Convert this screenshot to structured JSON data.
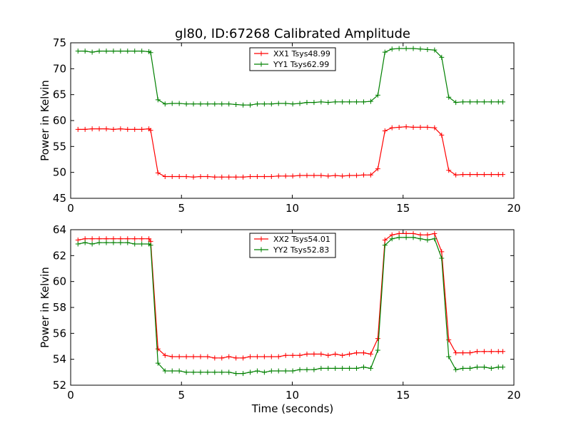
{
  "title": "gl80, ID:67268 Calibrated Amplitude",
  "xlabel": "Time (seconds)",
  "chart_data": [
    {
      "type": "line",
      "ylabel": "Power in Kelvin",
      "xlim": [
        0,
        20
      ],
      "ylim": [
        45,
        75
      ],
      "xticks": [
        0,
        5,
        10,
        15,
        20
      ],
      "yticks": [
        45,
        50,
        55,
        60,
        65,
        70,
        75
      ],
      "legend_loc": "top-center",
      "x": [
        0.33,
        0.65,
        0.97,
        1.29,
        1.61,
        1.93,
        2.25,
        2.57,
        2.89,
        3.21,
        3.53,
        3.61,
        3.94,
        4.26,
        4.58,
        4.9,
        5.22,
        5.54,
        5.86,
        6.18,
        6.5,
        6.82,
        7.14,
        7.46,
        7.78,
        8.1,
        8.42,
        8.74,
        9.06,
        9.38,
        9.7,
        10.02,
        10.34,
        10.66,
        10.98,
        11.3,
        11.62,
        11.94,
        12.26,
        12.58,
        12.9,
        13.22,
        13.54,
        13.86,
        14.18,
        14.5,
        14.82,
        15.14,
        15.46,
        15.78,
        16.1,
        16.42,
        16.74,
        17.06,
        17.38,
        17.7,
        18.02,
        18.34,
        18.66,
        18.98,
        19.3,
        19.5
      ],
      "series": [
        {
          "name": "XX1 Tsys48.99",
          "color": "#ff0000",
          "values": [
            58.3,
            58.3,
            58.4,
            58.4,
            58.4,
            58.3,
            58.4,
            58.3,
            58.3,
            58.3,
            58.4,
            58.1,
            49.9,
            49.2,
            49.2,
            49.2,
            49.2,
            49.1,
            49.2,
            49.2,
            49.1,
            49.1,
            49.1,
            49.1,
            49.1,
            49.2,
            49.2,
            49.2,
            49.2,
            49.3,
            49.3,
            49.3,
            49.4,
            49.4,
            49.4,
            49.4,
            49.3,
            49.4,
            49.3,
            49.4,
            49.4,
            49.5,
            49.5,
            50.7,
            58.0,
            58.6,
            58.7,
            58.8,
            58.7,
            58.7,
            58.7,
            58.6,
            57.2,
            50.4,
            49.5,
            49.6,
            49.6,
            49.6,
            49.6,
            49.6,
            49.6,
            49.6
          ]
        },
        {
          "name": "YY1 Tsys62.99",
          "color": "#008000",
          "values": [
            73.4,
            73.4,
            73.2,
            73.4,
            73.4,
            73.4,
            73.4,
            73.4,
            73.4,
            73.4,
            73.3,
            73.1,
            64.0,
            63.2,
            63.3,
            63.3,
            63.2,
            63.2,
            63.2,
            63.2,
            63.2,
            63.2,
            63.2,
            63.1,
            63.0,
            63.0,
            63.2,
            63.2,
            63.2,
            63.3,
            63.3,
            63.2,
            63.3,
            63.5,
            63.5,
            63.6,
            63.5,
            63.6,
            63.6,
            63.6,
            63.6,
            63.6,
            63.7,
            64.9,
            73.2,
            73.8,
            73.9,
            73.9,
            73.9,
            73.8,
            73.7,
            73.6,
            72.2,
            64.5,
            63.5,
            63.6,
            63.6,
            63.6,
            63.6,
            63.6,
            63.6,
            63.6
          ]
        }
      ]
    },
    {
      "type": "line",
      "ylabel": "Power in Kelvin",
      "xlim": [
        0,
        20
      ],
      "ylim": [
        52,
        64
      ],
      "xticks": [
        0,
        5,
        10,
        15,
        20
      ],
      "yticks": [
        52,
        54,
        56,
        58,
        60,
        62,
        64
      ],
      "legend_loc": "top-center",
      "x": [
        0.33,
        0.65,
        0.97,
        1.29,
        1.61,
        1.93,
        2.25,
        2.57,
        2.89,
        3.21,
        3.53,
        3.61,
        3.94,
        4.26,
        4.58,
        4.9,
        5.22,
        5.54,
        5.86,
        6.18,
        6.5,
        6.82,
        7.14,
        7.46,
        7.78,
        8.1,
        8.42,
        8.74,
        9.06,
        9.38,
        9.7,
        10.02,
        10.34,
        10.66,
        10.98,
        11.3,
        11.62,
        11.94,
        12.26,
        12.58,
        12.9,
        13.22,
        13.54,
        13.86,
        14.18,
        14.5,
        14.82,
        15.14,
        15.46,
        15.78,
        16.1,
        16.42,
        16.74,
        17.06,
        17.38,
        17.7,
        18.02,
        18.34,
        18.66,
        18.98,
        19.3,
        19.5
      ],
      "series": [
        {
          "name": "XX2 Tsys54.01",
          "color": "#ff0000",
          "values": [
            63.2,
            63.3,
            63.3,
            63.3,
            63.3,
            63.3,
            63.3,
            63.3,
            63.3,
            63.3,
            63.3,
            63.1,
            54.8,
            54.3,
            54.2,
            54.2,
            54.2,
            54.2,
            54.2,
            54.2,
            54.1,
            54.1,
            54.2,
            54.1,
            54.1,
            54.2,
            54.2,
            54.2,
            54.2,
            54.2,
            54.3,
            54.3,
            54.3,
            54.4,
            54.4,
            54.4,
            54.3,
            54.4,
            54.3,
            54.4,
            54.5,
            54.5,
            54.4,
            55.6,
            63.2,
            63.6,
            63.7,
            63.7,
            63.7,
            63.6,
            63.6,
            63.7,
            62.3,
            55.5,
            54.5,
            54.5,
            54.5,
            54.6,
            54.6,
            54.6,
            54.6,
            54.6
          ]
        },
        {
          "name": "YY2 Tsys52.83",
          "color": "#008000",
          "values": [
            62.9,
            63.0,
            62.9,
            63.0,
            63.0,
            63.0,
            63.0,
            63.0,
            62.9,
            62.9,
            62.9,
            62.8,
            53.7,
            53.1,
            53.1,
            53.1,
            53.0,
            53.0,
            53.0,
            53.0,
            53.0,
            53.0,
            53.0,
            52.9,
            52.9,
            53.0,
            53.1,
            53.0,
            53.1,
            53.1,
            53.1,
            53.1,
            53.2,
            53.2,
            53.2,
            53.3,
            53.3,
            53.3,
            53.3,
            53.3,
            53.3,
            53.4,
            53.3,
            54.7,
            62.8,
            63.3,
            63.4,
            63.4,
            63.4,
            63.3,
            63.2,
            63.3,
            61.8,
            54.2,
            53.2,
            53.3,
            53.3,
            53.4,
            53.4,
            53.3,
            53.4,
            53.4
          ]
        }
      ]
    }
  ]
}
